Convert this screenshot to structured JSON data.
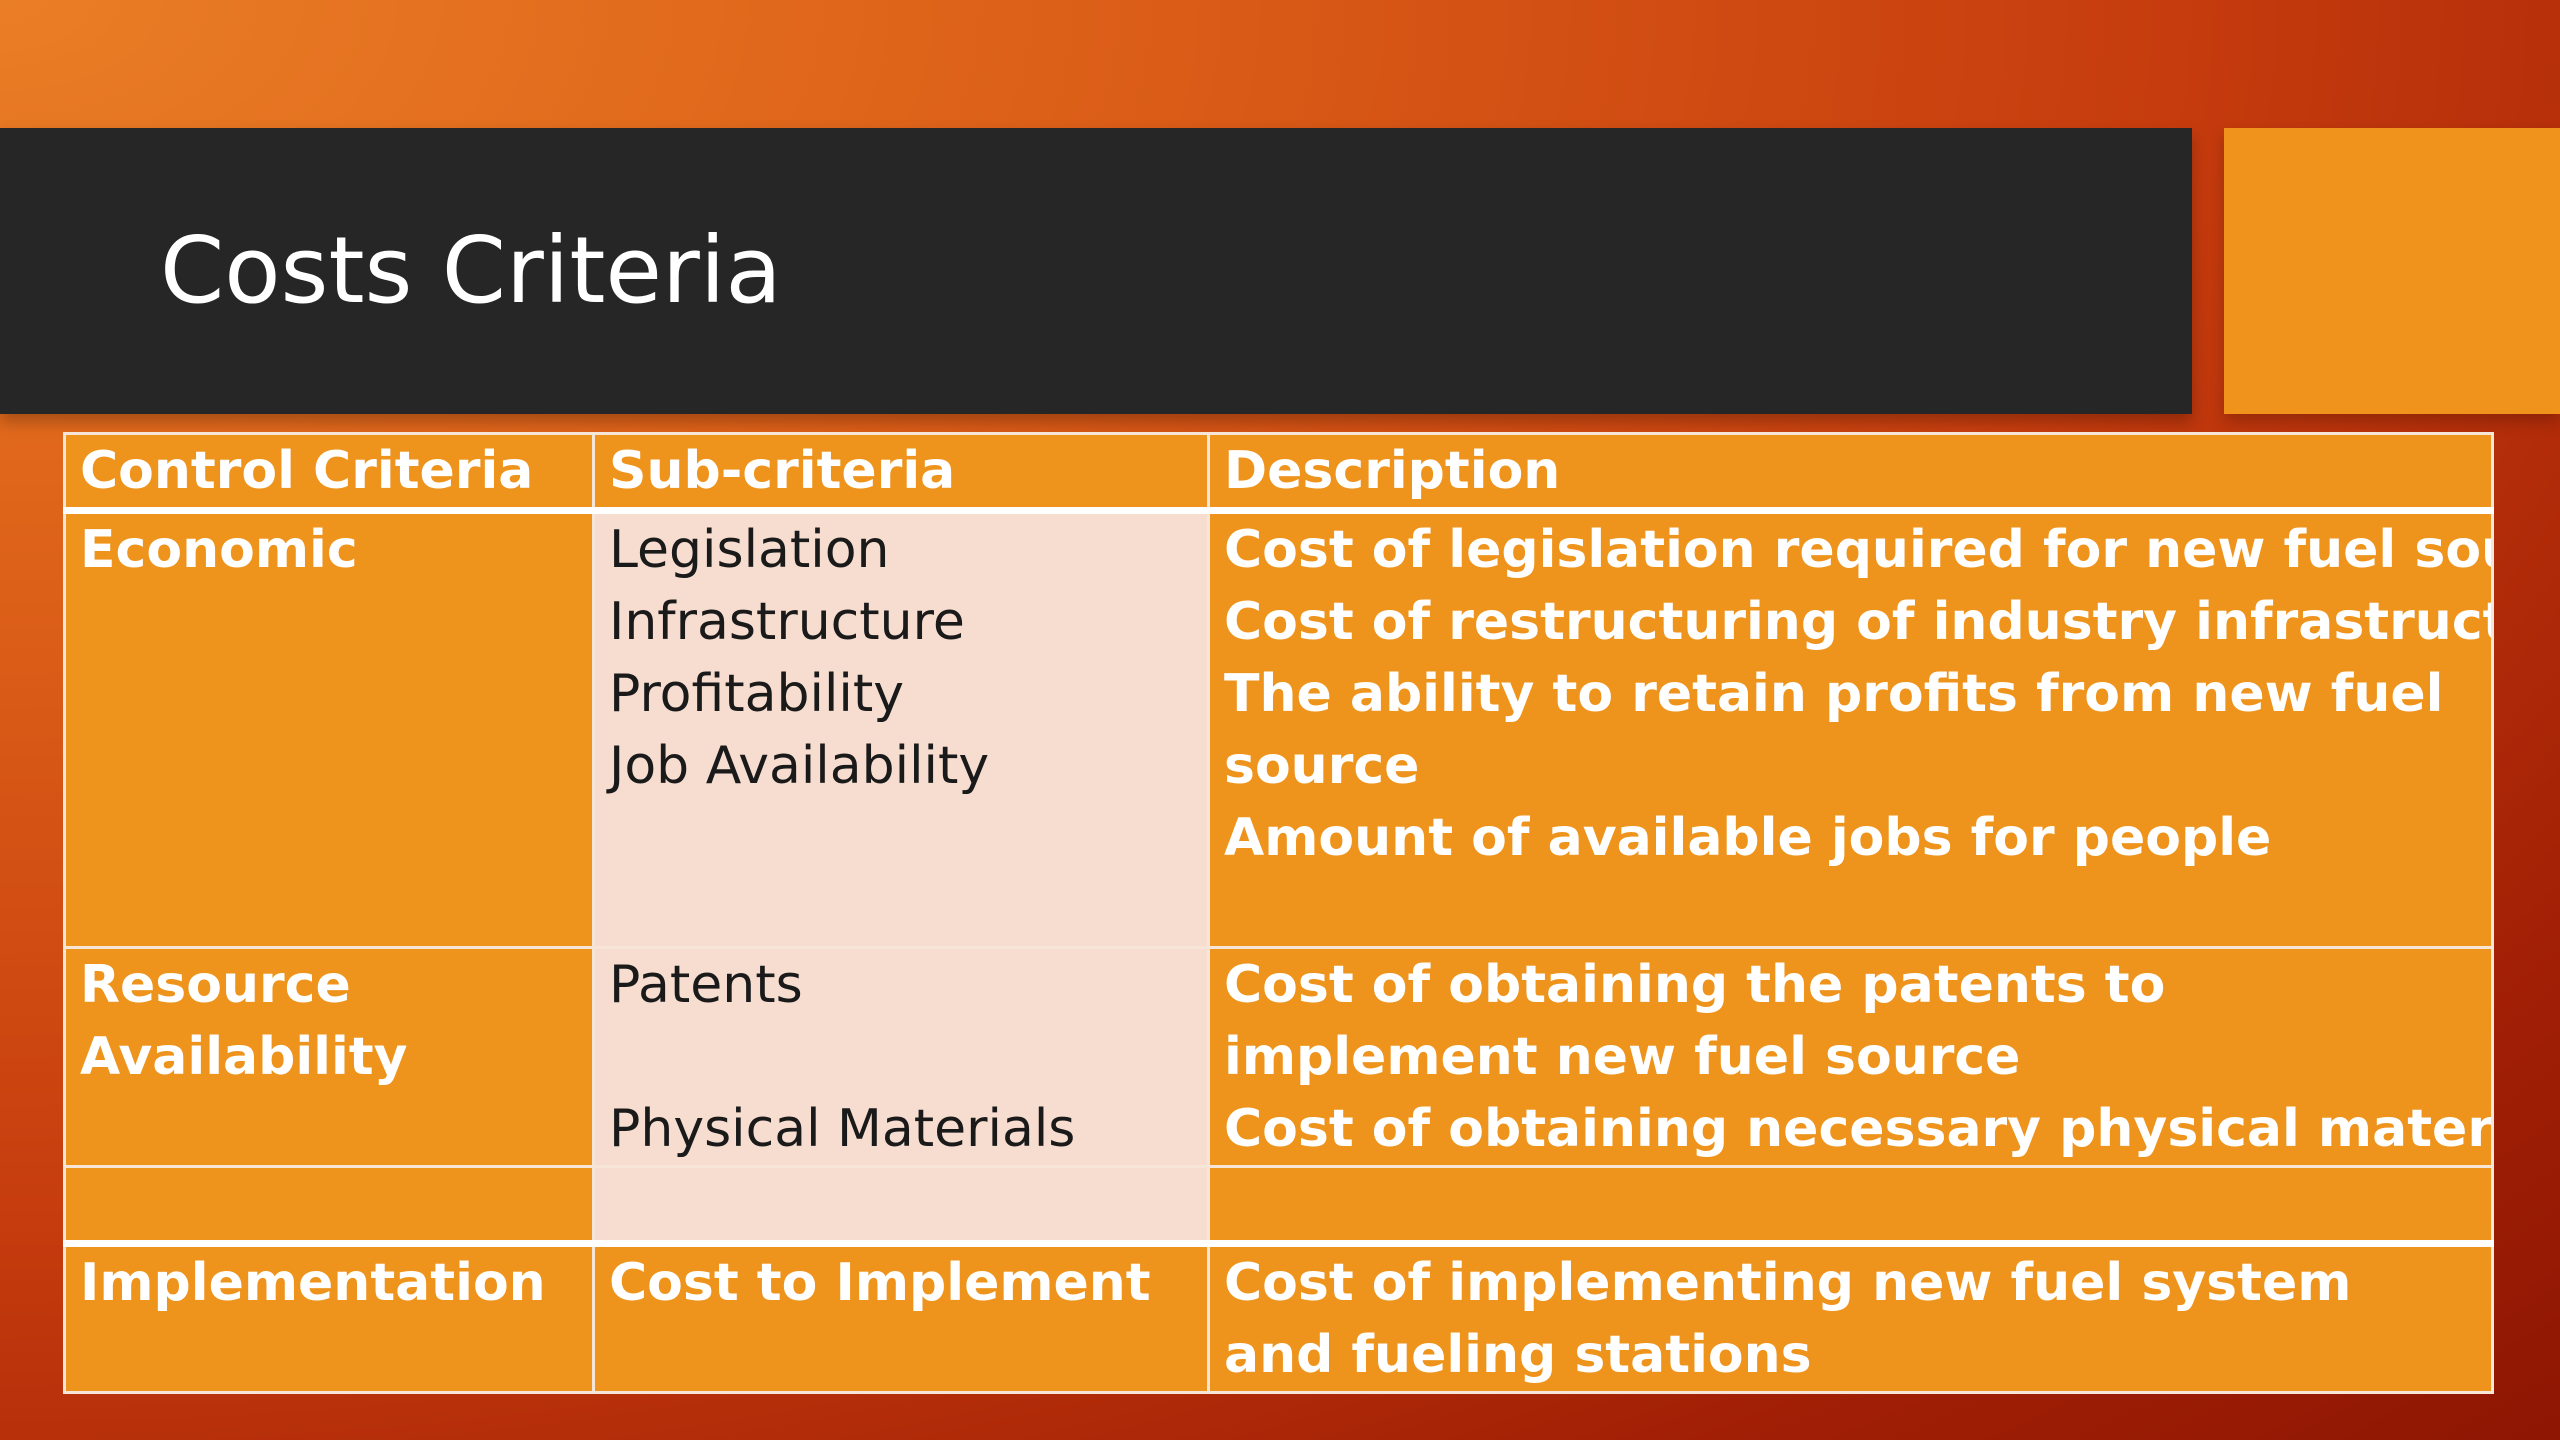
{
  "slide": {
    "title": "Costs Criteria",
    "colors": {
      "title_bar": "#262626",
      "accent": "#ef931c",
      "cell_orange": "#ee931b",
      "cell_light": "#f7ddd0",
      "background_light": "#ea7e26",
      "background_dark": "#8e1603"
    }
  },
  "table": {
    "headers": [
      "Control Criteria",
      "Sub-criteria",
      "Description"
    ],
    "rows": [
      {
        "category": "Economic",
        "sub": [
          "Legislation",
          "Infrastructure",
          "Profitability",
          "Job Availability"
        ],
        "desc": [
          "Cost of legislation required for new fuel source",
          "Cost of restructuring of industry infrastructure",
          "The ability to retain profits from new fuel source",
          "Amount of available jobs for people"
        ]
      },
      {
        "category": "Resource Availability",
        "sub": [
          "Patents",
          "Physical Materials"
        ],
        "desc": [
          "Cost of obtaining the patents to implement new fuel source",
          "Cost of obtaining necessary physical materials"
        ]
      },
      {
        "category": "",
        "sub": [],
        "desc": []
      },
      {
        "category": "Implementation",
        "sub": [
          "Cost to Implement"
        ],
        "desc": [
          "Cost of implementing new fuel system and fueling stations"
        ]
      }
    ]
  }
}
